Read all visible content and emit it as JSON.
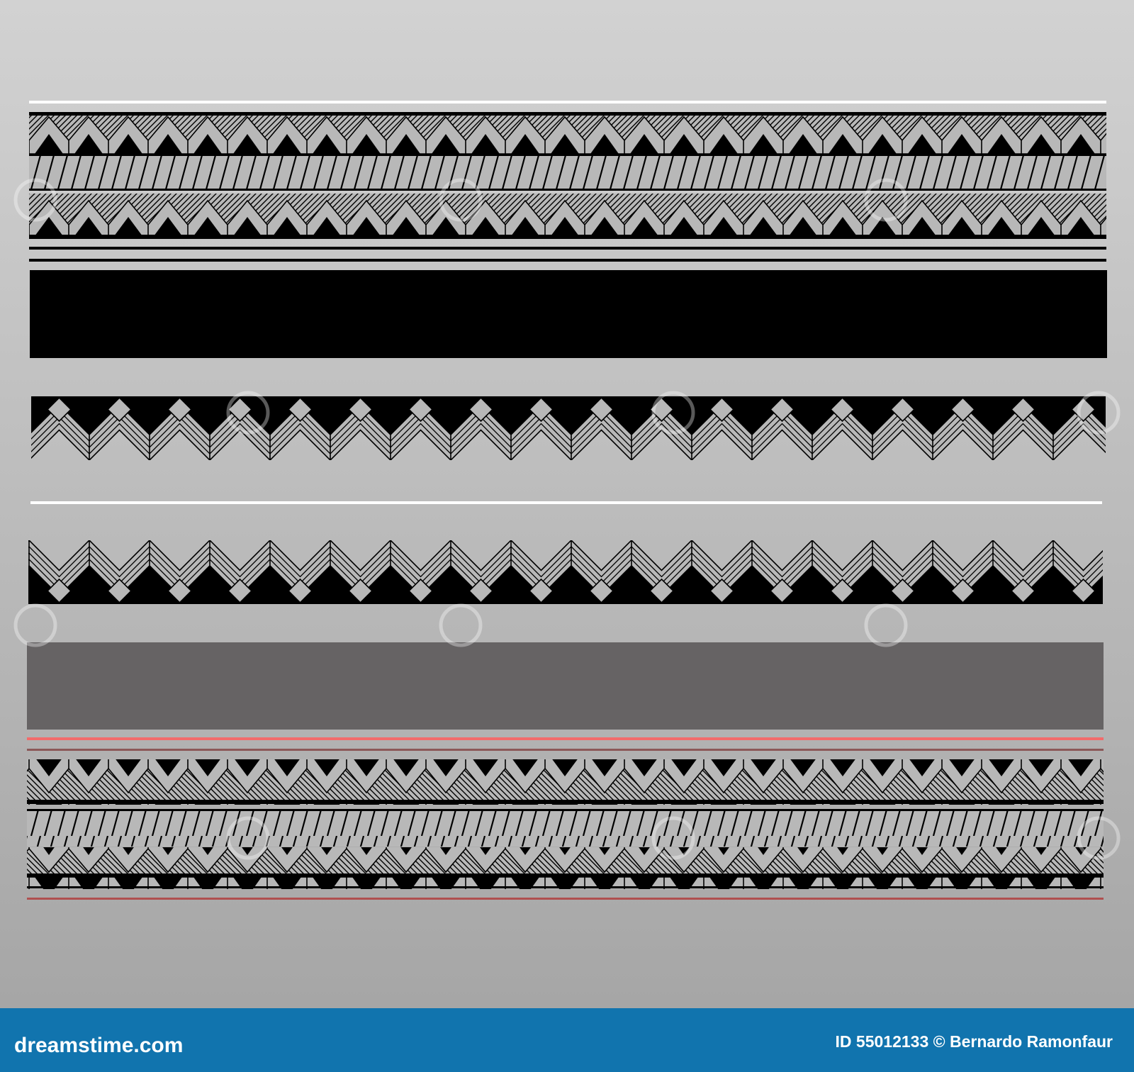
{
  "footer": {
    "brand": "dreamstime.com",
    "credit": "ID 55012133 © Bernardo Ramonfaur"
  },
  "colors": {
    "background_top": "#d2d2d2",
    "background_bottom": "#a6a6a6",
    "pattern_gray": "#b8b8b8",
    "pattern_black": "#000000",
    "gray_block": "#666364",
    "red_line": "#f26b6b",
    "dark_red_line": "#8c5858",
    "footer_blue": "#1174ae"
  },
  "watermark": "dreamstime"
}
